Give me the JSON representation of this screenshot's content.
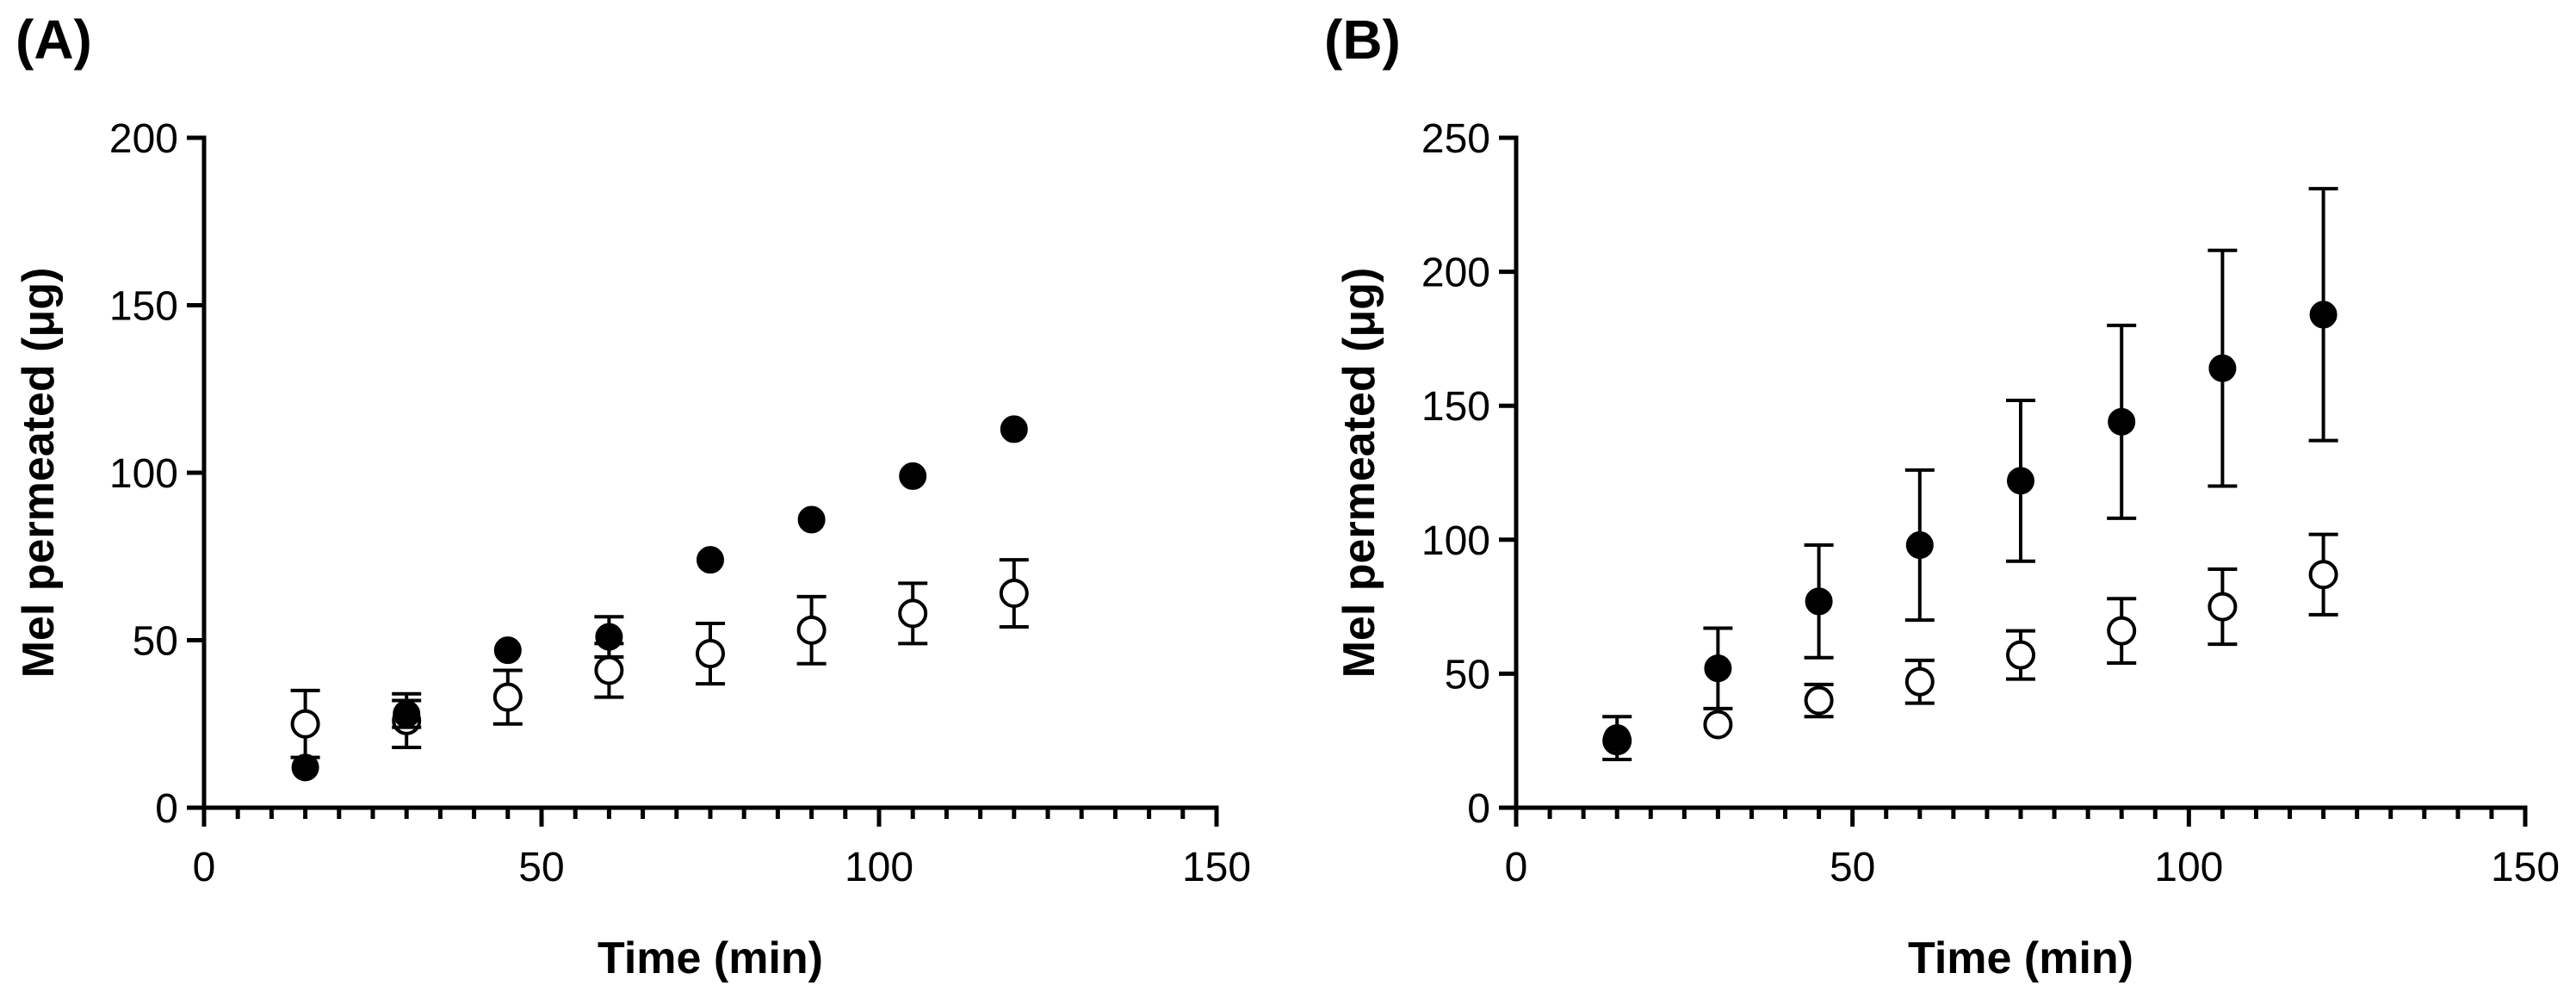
{
  "chart_data": [
    {
      "panel_label": "(A)",
      "type": "scatter",
      "xlabel": "Time (min)",
      "ylabel": "Mel permeated (μg)",
      "xlim": [
        0,
        150
      ],
      "ylim": [
        0,
        200
      ],
      "xticks": [
        0,
        50,
        100,
        150
      ],
      "xtick_labels": [
        "0",
        "50",
        "100",
        "150"
      ],
      "x_minor_step": 5,
      "yticks": [
        0,
        50,
        100,
        150,
        200
      ],
      "ytick_labels": [
        "0",
        "50",
        "100",
        "150",
        "200"
      ],
      "series": [
        {
          "name": "filled",
          "marker": "filled-circle",
          "x": [
            15,
            30,
            45,
            60,
            75,
            90,
            105,
            120
          ],
          "y": [
            12,
            28,
            47,
            51,
            74,
            86,
            99,
            113
          ],
          "err": [
            0,
            4,
            0,
            6,
            0,
            0,
            0,
            0
          ]
        },
        {
          "name": "open",
          "marker": "open-circle",
          "x": [
            15,
            30,
            45,
            60,
            75,
            90,
            105,
            120
          ],
          "y": [
            25,
            26,
            33,
            41,
            46,
            53,
            58,
            64
          ],
          "err": [
            10,
            8,
            8,
            8,
            9,
            10,
            9,
            10
          ]
        }
      ]
    },
    {
      "panel_label": "(B)",
      "type": "scatter",
      "xlabel": "Time (min)",
      "ylabel": "Mel permeated (μg)",
      "xlim": [
        0,
        150
      ],
      "ylim": [
        0,
        250
      ],
      "xticks": [
        0,
        50,
        100,
        150
      ],
      "xtick_labels": [
        "0",
        "50",
        "100",
        "150"
      ],
      "x_minor_step": 5,
      "yticks": [
        0,
        50,
        100,
        150,
        200,
        250
      ],
      "ytick_labels": [
        "0",
        "50",
        "100",
        "150",
        "200",
        "250"
      ],
      "series": [
        {
          "name": "filled",
          "marker": "filled-circle",
          "x": [
            15,
            30,
            45,
            60,
            75,
            90,
            105,
            120
          ],
          "y": [
            26,
            52,
            77,
            98,
            122,
            144,
            164,
            184
          ],
          "err": [
            8,
            15,
            21,
            28,
            30,
            36,
            44,
            47
          ]
        },
        {
          "name": "open",
          "marker": "open-circle",
          "x": [
            15,
            30,
            45,
            60,
            75,
            90,
            105,
            120
          ],
          "y": [
            25,
            31,
            40,
            47,
            57,
            66,
            75,
            87
          ],
          "err": [
            0,
            0,
            6,
            8,
            9,
            12,
            14,
            15
          ]
        }
      ]
    }
  ]
}
